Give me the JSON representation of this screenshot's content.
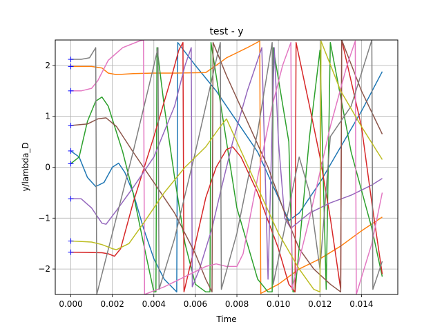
{
  "chart_data": {
    "type": "line",
    "title": "test - y",
    "xlabel": "Time",
    "ylabel": "y/lambda_D",
    "xlim": [
      -0.00075,
      0.01575
    ],
    "ylim": [
      -2.5,
      2.5
    ],
    "xticks": [
      0.0,
      0.002,
      0.004,
      0.006,
      0.008,
      0.01,
      0.012,
      0.014
    ],
    "xtick_labels": [
      "0.000",
      "0.002",
      "0.004",
      "0.006",
      "0.008",
      "0.010",
      "0.012",
      "0.014"
    ],
    "yticks": [
      -2,
      -1,
      0,
      1,
      2
    ],
    "ytick_labels": [
      "−2",
      "−1",
      "0",
      "1",
      "2"
    ],
    "grid": true,
    "markers": {
      "color": "#0000ff",
      "symbol": "+",
      "x": 0,
      "y": [
        2.12,
        1.98,
        1.5,
        0.82,
        0.32,
        0.07,
        -0.62,
        -1.45,
        -1.67
      ]
    },
    "series": [
      {
        "color": "#1f77b4",
        "points": [
          [
            0,
            0.32
          ],
          [
            0.0004,
            0.2
          ],
          [
            0.0008,
            -0.2
          ],
          [
            0.0012,
            -0.38
          ],
          [
            0.0016,
            -0.3
          ],
          [
            0.002,
            0.0
          ],
          [
            0.0023,
            0.08
          ],
          [
            0.0026,
            -0.1
          ],
          [
            0.003,
            -0.5
          ],
          [
            0.0035,
            -1.2
          ],
          [
            0.004,
            -1.8
          ],
          [
            0.0045,
            -2.2
          ],
          [
            0.0051,
            -2.45
          ],
          [
            0.00515,
            2.45
          ],
          [
            0.006,
            2.0
          ],
          [
            0.007,
            1.5
          ],
          [
            0.008,
            0.9
          ],
          [
            0.009,
            0.3
          ],
          [
            0.01,
            -0.6
          ],
          [
            0.0105,
            -1.05
          ],
          [
            0.011,
            -0.9
          ],
          [
            0.012,
            -0.3
          ],
          [
            0.013,
            0.4
          ],
          [
            0.014,
            1.1
          ],
          [
            0.015,
            1.88
          ]
        ]
      },
      {
        "color": "#ff7f0e",
        "points": [
          [
            0,
            1.98
          ],
          [
            0.001,
            1.98
          ],
          [
            0.0015,
            1.95
          ],
          [
            0.0018,
            1.85
          ],
          [
            0.0022,
            1.82
          ],
          [
            0.003,
            1.84
          ],
          [
            0.004,
            1.85
          ],
          [
            0.005,
            1.85
          ],
          [
            0.0065,
            1.86
          ],
          [
            0.007,
            2.0
          ],
          [
            0.0075,
            2.15
          ],
          [
            0.008,
            2.25
          ],
          [
            0.0085,
            2.35
          ],
          [
            0.0091,
            2.48
          ],
          [
            0.00915,
            -2.48
          ],
          [
            0.01,
            -2.3
          ],
          [
            0.011,
            -2.0
          ],
          [
            0.012,
            -1.8
          ],
          [
            0.013,
            -1.55
          ],
          [
            0.014,
            -1.25
          ],
          [
            0.015,
            -0.98
          ]
        ]
      },
      {
        "color": "#2ca02c",
        "points": [
          [
            0,
            0.07
          ],
          [
            0.0004,
            0.2
          ],
          [
            0.0008,
            0.9
          ],
          [
            0.0012,
            1.3
          ],
          [
            0.0015,
            1.38
          ],
          [
            0.0018,
            1.2
          ],
          [
            0.0025,
            0.3
          ],
          [
            0.003,
            -0.5
          ],
          [
            0.0035,
            -1.5
          ],
          [
            0.004,
            -2.45
          ],
          [
            0.0041,
            -2.45
          ],
          [
            0.00415,
            2.35
          ],
          [
            0.0045,
            1.2
          ],
          [
            0.005,
            -0.2
          ],
          [
            0.0055,
            -1.5
          ],
          [
            0.006,
            -2.3
          ],
          [
            0.0065,
            -2.45
          ],
          [
            0.0067,
            -2.45
          ],
          [
            0.00675,
            2.45
          ],
          [
            0.0075,
            0.5
          ],
          [
            0.008,
            -0.8
          ],
          [
            0.009,
            -2.2
          ],
          [
            0.0095,
            -2.45
          ],
          [
            0.0097,
            -2.45
          ],
          [
            0.00975,
            2.35
          ],
          [
            0.0105,
            0.5
          ],
          [
            0.0107,
            -2.45
          ],
          [
            0.0108,
            -2.45
          ],
          [
            0.0115,
            0.6
          ],
          [
            0.012,
            2.3
          ],
          [
            0.0123,
            -2.4
          ],
          [
            0.0125,
            2.45
          ],
          [
            0.0135,
            0.3
          ],
          [
            0.0145,
            -1.2
          ],
          [
            0.015,
            -2.15
          ]
        ]
      },
      {
        "color": "#d62728",
        "points": [
          [
            0,
            -1.67
          ],
          [
            0.0015,
            -1.68
          ],
          [
            0.0018,
            -1.7
          ],
          [
            0.0021,
            -1.75
          ],
          [
            0.0024,
            -1.6
          ],
          [
            0.003,
            -0.7
          ],
          [
            0.004,
            0.6
          ],
          [
            0.0048,
            1.7
          ],
          [
            0.0052,
            2.3
          ],
          [
            0.0054,
            2.45
          ],
          [
            0.00545,
            -2.45
          ],
          [
            0.006,
            -1.5
          ],
          [
            0.0065,
            -0.6
          ],
          [
            0.007,
            0.0
          ],
          [
            0.0075,
            0.35
          ],
          [
            0.0078,
            0.4
          ],
          [
            0.0082,
            0.2
          ],
          [
            0.009,
            -0.5
          ],
          [
            0.01,
            -1.6
          ],
          [
            0.0105,
            -2.3
          ],
          [
            0.0108,
            -2.45
          ],
          [
            0.01085,
            2.45
          ],
          [
            0.0115,
            1.2
          ],
          [
            0.012,
            0.2
          ],
          [
            0.0125,
            -1.0
          ],
          [
            0.013,
            -2.4
          ],
          [
            0.01305,
            2.5
          ],
          [
            0.014,
            0.8
          ],
          [
            0.0145,
            -0.7
          ],
          [
            0.015,
            -2.1
          ]
        ]
      },
      {
        "color": "#9467bd",
        "points": [
          [
            0,
            -0.62
          ],
          [
            0.0005,
            -0.62
          ],
          [
            0.001,
            -0.8
          ],
          [
            0.0015,
            -1.1
          ],
          [
            0.0017,
            -1.12
          ],
          [
            0.0022,
            -0.85
          ],
          [
            0.003,
            -0.4
          ],
          [
            0.004,
            0.2
          ],
          [
            0.005,
            1.2
          ],
          [
            0.0055,
            2.0
          ],
          [
            0.0058,
            2.35
          ],
          [
            0.00585,
            -2.35
          ],
          [
            0.0062,
            -2.0
          ],
          [
            0.0068,
            -1.2
          ],
          [
            0.0072,
            -0.5
          ],
          [
            0.0078,
            0.5
          ],
          [
            0.0085,
            1.5
          ],
          [
            0.0092,
            2.35
          ],
          [
            0.0095,
            -2.2
          ],
          [
            0.0098,
            2.35
          ],
          [
            0.01,
            0.5
          ],
          [
            0.0103,
            -1.0
          ],
          [
            0.0106,
            -1.2
          ],
          [
            0.0115,
            -0.9
          ],
          [
            0.0125,
            -0.7
          ],
          [
            0.0135,
            -0.55
          ],
          [
            0.0145,
            -0.35
          ],
          [
            0.015,
            -0.22
          ]
        ]
      },
      {
        "color": "#8c564b",
        "points": [
          [
            0,
            0.82
          ],
          [
            0.0008,
            0.85
          ],
          [
            0.0013,
            0.95
          ],
          [
            0.0017,
            0.97
          ],
          [
            0.0022,
            0.8
          ],
          [
            0.003,
            0.3
          ],
          [
            0.004,
            -0.3
          ],
          [
            0.005,
            -0.9
          ],
          [
            0.006,
            -1.7
          ],
          [
            0.0065,
            -2.2
          ],
          [
            0.0068,
            -2.45
          ],
          [
            0.00685,
            2.45
          ],
          [
            0.0075,
            1.8
          ],
          [
            0.0085,
            0.9
          ],
          [
            0.0095,
            0.0
          ],
          [
            0.0103,
            -0.9
          ],
          [
            0.011,
            -1.6
          ],
          [
            0.0117,
            -2.0
          ],
          [
            0.0125,
            -2.3
          ],
          [
            0.013,
            -2.45
          ],
          [
            0.01305,
            2.5
          ],
          [
            0.014,
            1.5
          ],
          [
            0.015,
            0.65
          ]
        ]
      },
      {
        "color": "#e377c2",
        "points": [
          [
            0,
            1.5
          ],
          [
            0.0005,
            1.5
          ],
          [
            0.001,
            1.55
          ],
          [
            0.0013,
            1.7
          ],
          [
            0.0018,
            2.1
          ],
          [
            0.0025,
            2.35
          ],
          [
            0.0033,
            2.48
          ],
          [
            0.0035,
            2.5
          ],
          [
            0.00355,
            -2.5
          ],
          [
            0.0045,
            -2.35
          ],
          [
            0.0055,
            -2.15
          ],
          [
            0.0065,
            -1.95
          ],
          [
            0.007,
            -1.9
          ],
          [
            0.0075,
            -1.95
          ],
          [
            0.008,
            -1.95
          ],
          [
            0.0083,
            -1.7
          ],
          [
            0.009,
            -0.2
          ],
          [
            0.0097,
            1.2
          ],
          [
            0.0102,
            2.0
          ],
          [
            0.0106,
            2.45
          ],
          [
            0.01065,
            -2.4
          ],
          [
            0.0115,
            -1.0
          ],
          [
            0.0125,
            0.8
          ],
          [
            0.0133,
            2.0
          ],
          [
            0.0137,
            2.48
          ],
          [
            0.01375,
            -2.5
          ],
          [
            0.0145,
            -1.5
          ],
          [
            0.015,
            -0.5
          ]
        ]
      },
      {
        "color": "#7f7f7f",
        "points": [
          [
            0,
            2.12
          ],
          [
            0.0005,
            2.12
          ],
          [
            0.0009,
            2.15
          ],
          [
            0.0012,
            2.35
          ],
          [
            0.00125,
            -2.5
          ],
          [
            0.002,
            -1.3
          ],
          [
            0.003,
            0.3
          ],
          [
            0.004,
            2.0
          ],
          [
            0.0042,
            2.35
          ],
          [
            0.00425,
            -2.4
          ],
          [
            0.005,
            -1.4
          ],
          [
            0.006,
            0.3
          ],
          [
            0.007,
            2.1
          ],
          [
            0.0072,
            2.45
          ],
          [
            0.00725,
            -2.4
          ],
          [
            0.008,
            -1.3
          ],
          [
            0.009,
            0.7
          ],
          [
            0.0097,
            2.45
          ],
          [
            0.00975,
            -2.3
          ],
          [
            0.0105,
            -0.8
          ],
          [
            0.011,
            0.2
          ],
          [
            0.0115,
            -0.5
          ],
          [
            0.012,
            -2.0
          ],
          [
            0.0125,
            0.6
          ],
          [
            0.0135,
            1.2
          ],
          [
            0.0145,
            2.5
          ],
          [
            0.01455,
            -2.4
          ],
          [
            0.015,
            -1.85
          ]
        ]
      },
      {
        "color": "#bcbd22",
        "points": [
          [
            0,
            -1.45
          ],
          [
            0.001,
            -1.47
          ],
          [
            0.0015,
            -1.52
          ],
          [
            0.002,
            -1.6
          ],
          [
            0.0022,
            -1.62
          ],
          [
            0.0028,
            -1.5
          ],
          [
            0.0035,
            -1.1
          ],
          [
            0.0045,
            -0.5
          ],
          [
            0.0055,
            0.0
          ],
          [
            0.0065,
            0.4
          ],
          [
            0.0072,
            0.8
          ],
          [
            0.0075,
            0.95
          ],
          [
            0.008,
            0.5
          ],
          [
            0.009,
            -0.4
          ],
          [
            0.01,
            -1.3
          ],
          [
            0.011,
            -2.0
          ],
          [
            0.0117,
            -2.4
          ],
          [
            0.012,
            -2.45
          ],
          [
            0.01205,
            2.48
          ],
          [
            0.013,
            1.5
          ],
          [
            0.014,
            0.8
          ],
          [
            0.015,
            0.15
          ]
        ]
      },
      {
        "color": "#17becf",
        "points": []
      }
    ]
  }
}
